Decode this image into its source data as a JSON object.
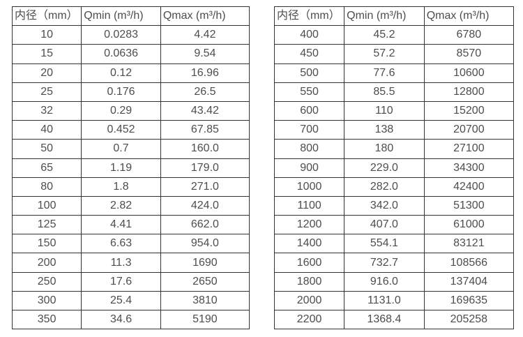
{
  "tables": [
    {
      "name": "flow-rate-table-small-diameters",
      "headers": [
        "内径（mm）",
        "Qmin (m³/h)",
        "Qmax (m³/h)"
      ],
      "rows": [
        [
          "10",
          "0.0283",
          "4.42"
        ],
        [
          "15",
          "0.0636",
          "9.54"
        ],
        [
          "20",
          "0.12",
          "16.96"
        ],
        [
          "25",
          "0.176",
          "26.5"
        ],
        [
          "32",
          "0.29",
          "43.42"
        ],
        [
          "40",
          "0.452",
          "67.85"
        ],
        [
          "50",
          "0.7",
          "160.0"
        ],
        [
          "65",
          "1.19",
          "179.0"
        ],
        [
          "80",
          "1.8",
          "271.0"
        ],
        [
          "100",
          "2.82",
          "424.0"
        ],
        [
          "125",
          "4.41",
          "662.0"
        ],
        [
          "150",
          "6.63",
          "954.0"
        ],
        [
          "200",
          "11.3",
          "1690"
        ],
        [
          "250",
          "17.6",
          "2650"
        ],
        [
          "300",
          "25.4",
          "3810"
        ],
        [
          "350",
          "34.6",
          "5190"
        ]
      ]
    },
    {
      "name": "flow-rate-table-large-diameters",
      "headers": [
        "内径（mm）",
        "Qmin (m³/h)",
        "Qmax (m³/h)"
      ],
      "rows": [
        [
          "400",
          "45.2",
          "6780"
        ],
        [
          "450",
          "57.2",
          "8570"
        ],
        [
          "500",
          "77.6",
          "10600"
        ],
        [
          "550",
          "85.5",
          "12800"
        ],
        [
          "600",
          "110",
          "15200"
        ],
        [
          "700",
          "138",
          "20700"
        ],
        [
          "800",
          "180",
          "27100"
        ],
        [
          "900",
          "229.0",
          "34300"
        ],
        [
          "1000",
          "282.0",
          "42400"
        ],
        [
          "1100",
          "342.0",
          "51300"
        ],
        [
          "1200",
          "407.0",
          "61000"
        ],
        [
          "1400",
          "554.1",
          "83121"
        ],
        [
          "1600",
          "732.7",
          "108566"
        ],
        [
          "1800",
          "916.0",
          "137404"
        ],
        [
          "2000",
          "1131.0",
          "169635"
        ],
        [
          "2200",
          "1368.4",
          "205258"
        ]
      ]
    }
  ],
  "colors": {
    "text": "#4d4d4d",
    "border": "#333333",
    "background": "#ffffff"
  }
}
